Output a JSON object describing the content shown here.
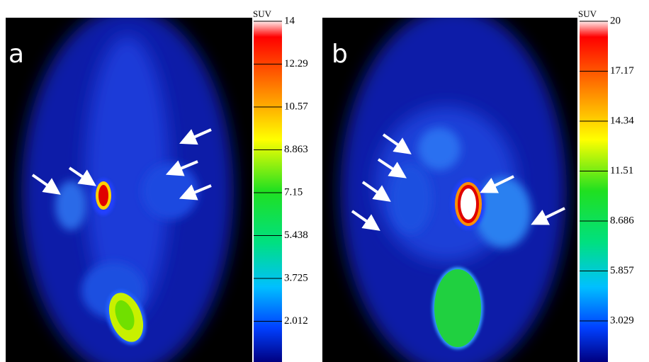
{
  "panels": [
    {
      "label": "a",
      "colorbar": {
        "title": "SUV",
        "ticks": [
          "14",
          "12.29",
          "10.57",
          "8.863",
          "7.15",
          "5.438",
          "3.725",
          "2.012"
        ]
      }
    },
    {
      "label": "b",
      "colorbar": {
        "title": "SUV",
        "ticks": [
          "20",
          "17.17",
          "14.34",
          "11.51",
          "8.686",
          "5.857",
          "3.029"
        ]
      }
    }
  ]
}
